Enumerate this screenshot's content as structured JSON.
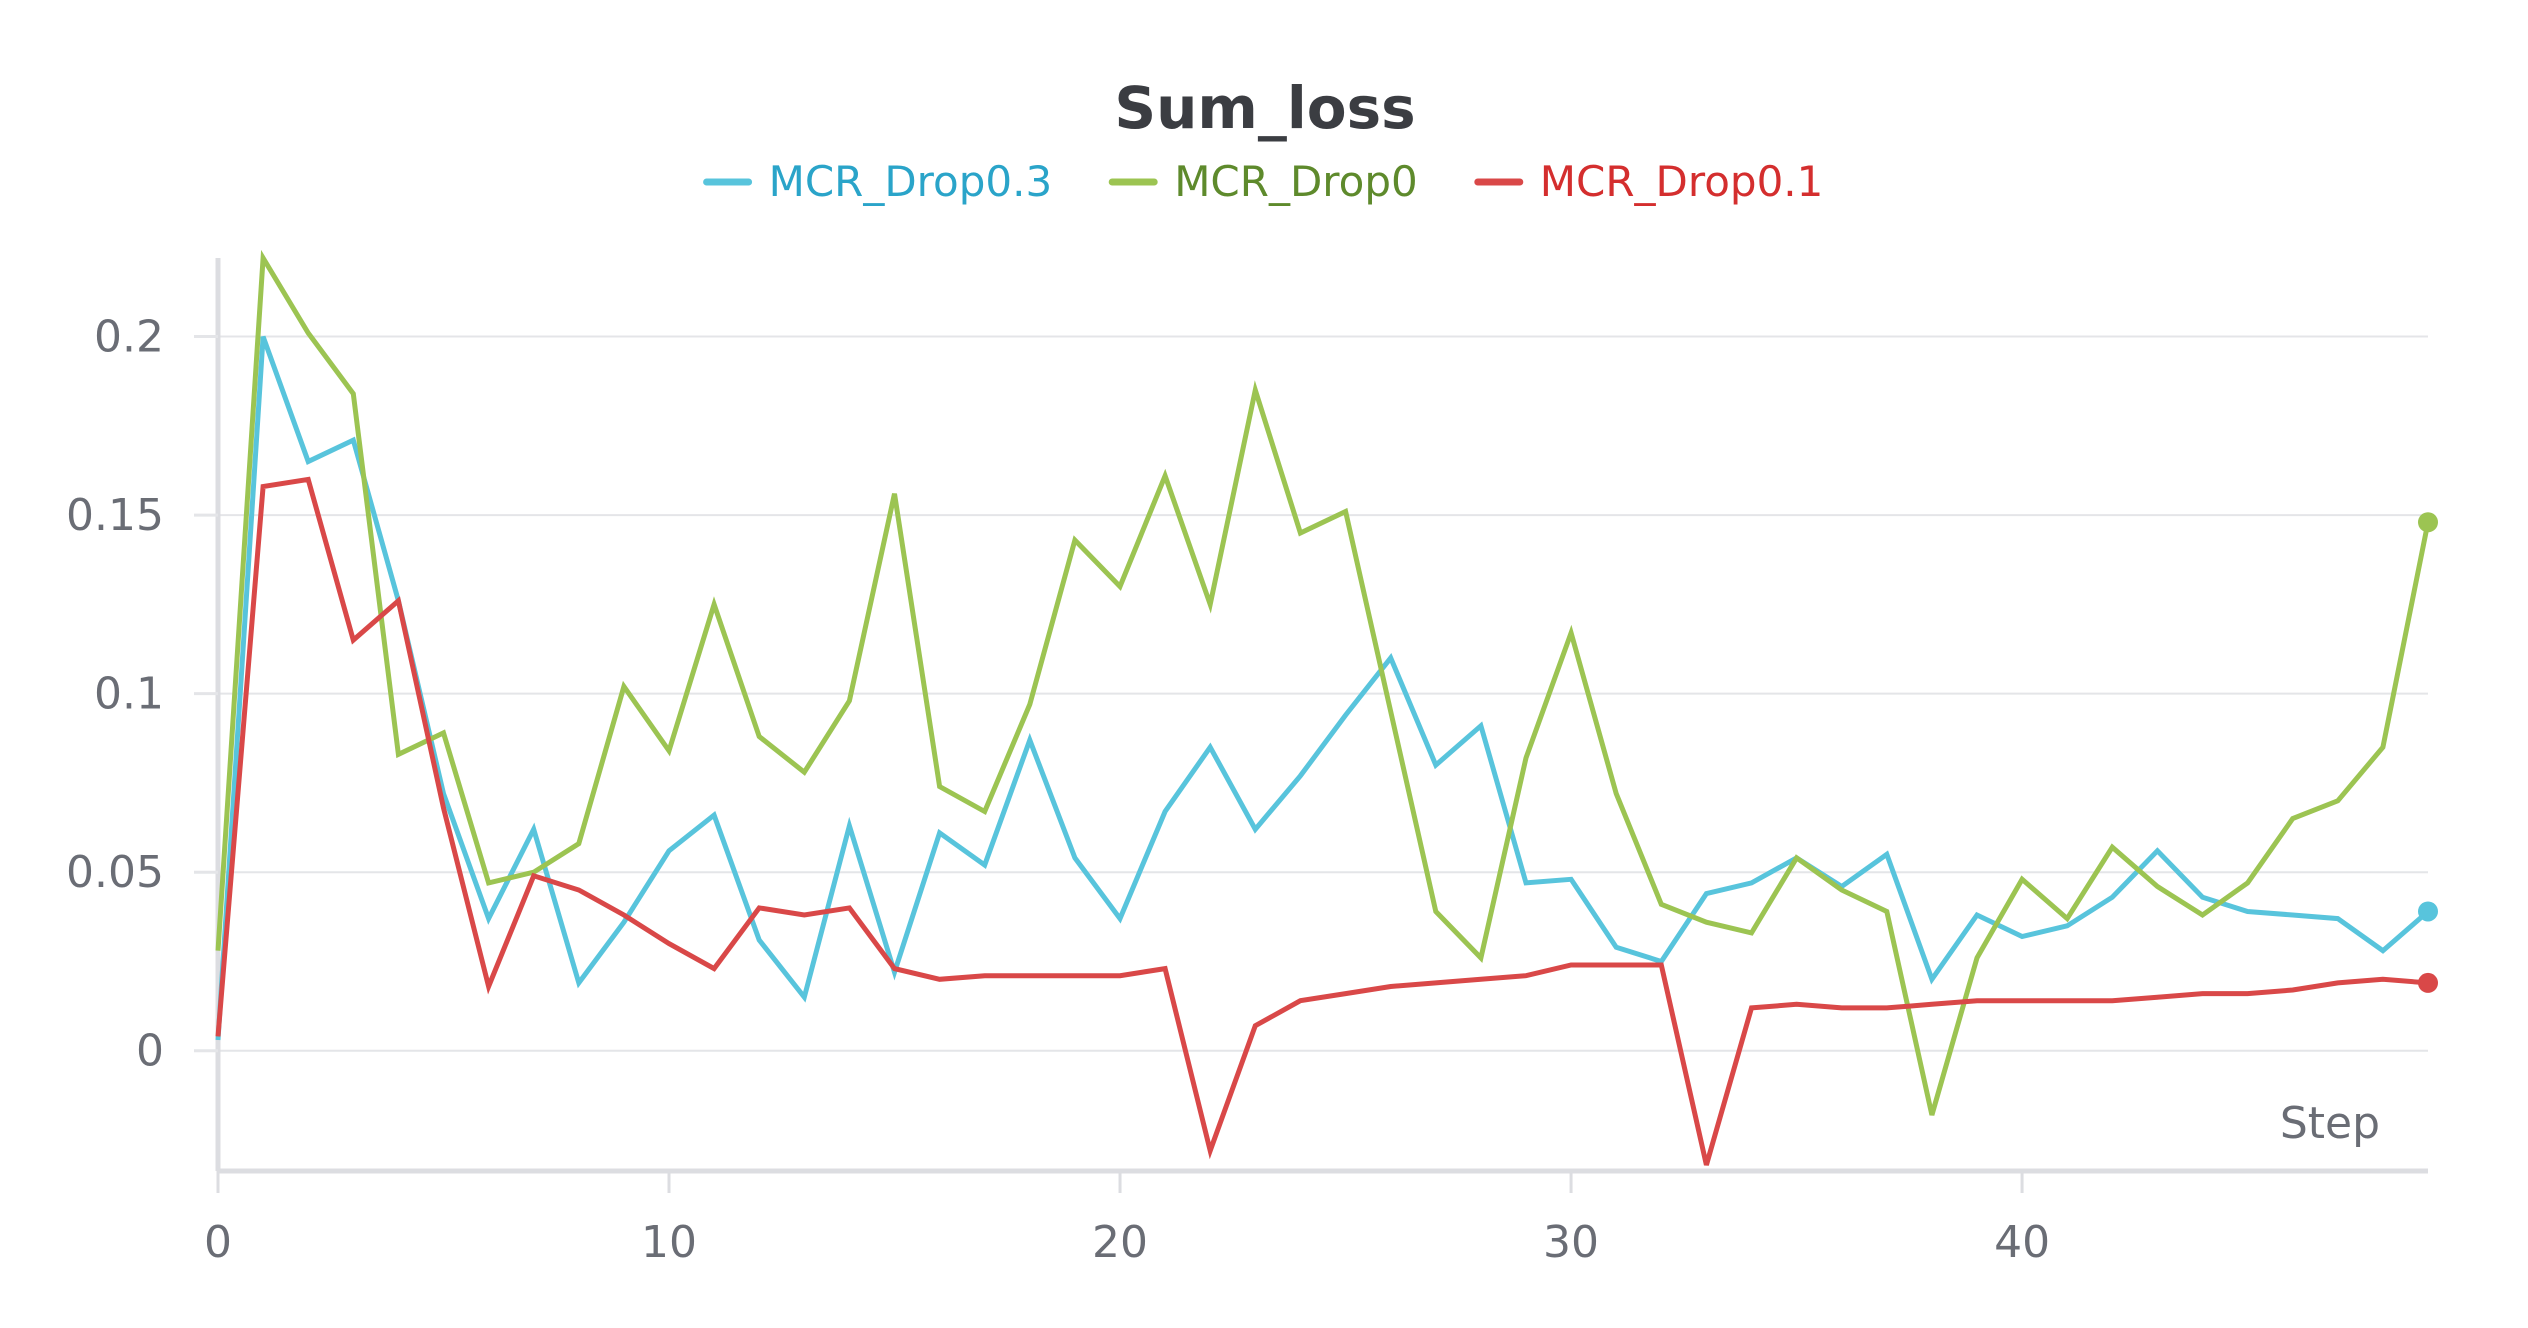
{
  "chart_data": {
    "type": "line",
    "title": "Sum_loss",
    "xlabel": "Step",
    "ylabel": "",
    "xlim": [
      0,
      49
    ],
    "ylim": [
      -0.032,
      0.222
    ],
    "x_ticks": [
      {
        "value": 0,
        "label": "0"
      },
      {
        "value": 10,
        "label": "10"
      },
      {
        "value": 20,
        "label": "20"
      },
      {
        "value": 30,
        "label": "30"
      },
      {
        "value": 40,
        "label": "40"
      }
    ],
    "y_ticks": [
      {
        "value": 0,
        "label": "0"
      },
      {
        "value": 0.05,
        "label": "0.05"
      },
      {
        "value": 0.1,
        "label": "0.1"
      },
      {
        "value": 0.15,
        "label": "0.15"
      },
      {
        "value": 0.2,
        "label": "0.2"
      }
    ],
    "grid": true,
    "legend_position": "top-center",
    "x": [
      0,
      1,
      2,
      3,
      4,
      5,
      6,
      7,
      8,
      9,
      10,
      11,
      12,
      13,
      14,
      15,
      16,
      17,
      18,
      19,
      20,
      21,
      22,
      23,
      24,
      25,
      26,
      27,
      28,
      29,
      30,
      31,
      32,
      33,
      34,
      35,
      36,
      37,
      38,
      39,
      40,
      41,
      42,
      43,
      44,
      45,
      46,
      47,
      48,
      49
    ],
    "series": [
      {
        "name": "MCR_Drop0.3",
        "color": "#58c4dc",
        "legend_text_color": "#2aa4c9",
        "end_marker": true,
        "values": [
          0.003,
          0.2,
          0.165,
          0.171,
          0.126,
          0.072,
          0.037,
          0.062,
          0.019,
          0.036,
          0.056,
          0.066,
          0.031,
          0.015,
          0.063,
          0.022,
          0.061,
          0.052,
          0.087,
          0.054,
          0.037,
          0.067,
          0.085,
          0.062,
          0.077,
          0.094,
          0.11,
          0.08,
          0.091,
          0.047,
          0.048,
          0.029,
          0.025,
          0.044,
          0.047,
          0.054,
          0.046,
          0.055,
          0.02,
          0.038,
          0.032,
          0.035,
          0.043,
          0.056,
          0.043,
          0.039,
          0.038,
          0.037,
          0.028,
          0.039
        ]
      },
      {
        "name": "MCR_Drop0",
        "color": "#9cc452",
        "legend_text_color": "#5e8a2c",
        "end_marker": true,
        "values": [
          0.028,
          0.222,
          0.201,
          0.184,
          0.083,
          0.089,
          0.047,
          0.05,
          0.058,
          0.102,
          0.084,
          0.125,
          0.088,
          0.078,
          0.098,
          0.156,
          0.074,
          0.067,
          0.097,
          0.143,
          0.13,
          0.161,
          0.125,
          0.185,
          0.145,
          0.151,
          0.095,
          0.039,
          0.026,
          0.082,
          0.117,
          0.072,
          0.041,
          0.036,
          0.033,
          0.054,
          0.045,
          0.039,
          -0.018,
          0.026,
          0.048,
          0.037,
          0.057,
          0.046,
          0.038,
          0.047,
          0.065,
          0.07,
          0.085,
          0.148
        ]
      },
      {
        "name": "MCR_Drop0.1",
        "color": "#d94848",
        "legend_text_color": "#d42e2e",
        "end_marker": true,
        "values": [
          0.004,
          0.158,
          0.16,
          0.115,
          0.126,
          0.068,
          0.018,
          0.049,
          0.045,
          0.038,
          0.03,
          0.023,
          0.04,
          0.038,
          0.04,
          0.023,
          0.02,
          0.021,
          0.021,
          0.021,
          0.021,
          0.023,
          -0.028,
          0.007,
          0.014,
          0.016,
          0.018,
          0.019,
          0.02,
          0.021,
          0.024,
          0.024,
          0.024,
          -0.032,
          0.012,
          0.013,
          0.012,
          0.012,
          0.013,
          0.014,
          0.014,
          0.014,
          0.014,
          0.015,
          0.016,
          0.016,
          0.017,
          0.019,
          0.02,
          0.019
        ]
      }
    ]
  }
}
